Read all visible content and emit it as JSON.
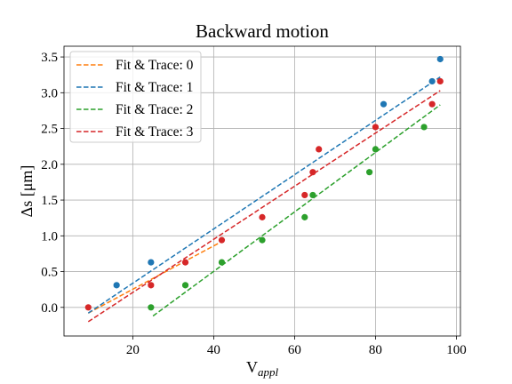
{
  "chart_data": {
    "type": "scatter",
    "title": "Backward motion",
    "xlabel": "V",
    "xlabel_sub": "appl",
    "ylabel": "Δs [μm]",
    "xlim": [
      3,
      101
    ],
    "ylim": [
      -0.4,
      3.65
    ],
    "xticks": [
      20,
      40,
      60,
      80,
      100
    ],
    "yticks": [
      0.0,
      0.5,
      1.0,
      1.5,
      2.0,
      2.5,
      3.0,
      3.5
    ],
    "xtick_labels": [
      "20",
      "40",
      "60",
      "80",
      "100"
    ],
    "ytick_labels": [
      "0.0",
      "0.5",
      "1.0",
      "1.5",
      "2.0",
      "2.5",
      "3.0",
      "3.5"
    ],
    "grid": true,
    "legend_position": "top-left",
    "series": [
      {
        "name": "Fit & Trace: 0",
        "color": "#ff7f0e",
        "points": [],
        "fit": {
          "x": [
            9,
            42
          ],
          "y": [
            -0.08,
            0.92
          ]
        }
      },
      {
        "name": "Fit & Trace: 1",
        "color": "#1f77b4",
        "points": [
          {
            "x": 16,
            "y": 0.31
          },
          {
            "x": 24.5,
            "y": 0.63
          },
          {
            "x": 82,
            "y": 2.84
          },
          {
            "x": 94,
            "y": 3.16
          },
          {
            "x": 96,
            "y": 3.47
          }
        ],
        "fit": {
          "x": [
            9,
            96
          ],
          "y": [
            -0.08,
            3.22
          ]
        }
      },
      {
        "name": "Fit & Trace: 2",
        "color": "#2ca02c",
        "points": [
          {
            "x": 24.5,
            "y": 0.0
          },
          {
            "x": 33,
            "y": 0.31
          },
          {
            "x": 42,
            "y": 0.63
          },
          {
            "x": 52,
            "y": 0.94
          },
          {
            "x": 62.5,
            "y": 1.26
          },
          {
            "x": 64.5,
            "y": 1.57
          },
          {
            "x": 78.5,
            "y": 1.89
          },
          {
            "x": 80,
            "y": 2.21
          },
          {
            "x": 92,
            "y": 2.52
          }
        ],
        "fit": {
          "x": [
            25,
            96
          ],
          "y": [
            -0.12,
            2.83
          ]
        }
      },
      {
        "name": "Fit & Trace: 3",
        "color": "#d62728",
        "points": [
          {
            "x": 9,
            "y": 0.0
          },
          {
            "x": 24.5,
            "y": 0.31
          },
          {
            "x": 33,
            "y": 0.63
          },
          {
            "x": 42,
            "y": 0.94
          },
          {
            "x": 52,
            "y": 1.26
          },
          {
            "x": 62.5,
            "y": 1.57
          },
          {
            "x": 64.5,
            "y": 1.89
          },
          {
            "x": 66,
            "y": 2.21
          },
          {
            "x": 80,
            "y": 2.52
          },
          {
            "x": 94,
            "y": 2.84
          },
          {
            "x": 96,
            "y": 3.16
          }
        ],
        "fit": {
          "x": [
            9,
            96
          ],
          "y": [
            -0.2,
            3.03
          ]
        }
      }
    ]
  }
}
